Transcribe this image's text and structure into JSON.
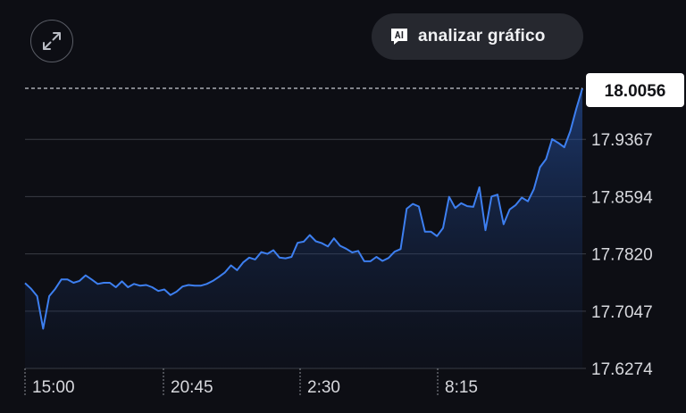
{
  "controls": {
    "expand_icon": "expand-arrows-icon",
    "analyze_label": "analizar gráfico",
    "analyze_icon": "ai-chat-icon"
  },
  "colors": {
    "background": "#0d0e14",
    "line": "#3d7ff0",
    "grid": "#3a3c44",
    "price_box": "#ffffff"
  },
  "chart_data": {
    "type": "area",
    "title": "",
    "xlabel": "",
    "ylabel": "",
    "y_ticks": [
      "17.6274",
      "17.7047",
      "17.7820",
      "17.8594",
      "17.9367"
    ],
    "ylim": [
      17.6274,
      18.0056
    ],
    "x_ticks": [
      "15:00",
      "20:45",
      "2:30",
      "8:15"
    ],
    "last_price_label": "18.0056",
    "grid": "horizontal",
    "series": [
      {
        "values": [
          17.7425,
          17.735,
          17.725,
          17.681,
          17.725,
          17.735,
          17.7475,
          17.7475,
          17.743,
          17.7455,
          17.753,
          17.7475,
          17.7415,
          17.743,
          17.743,
          17.737,
          17.745,
          17.737,
          17.7415,
          17.739,
          17.74,
          17.737,
          17.732,
          17.734,
          17.7265,
          17.731,
          17.738,
          17.74,
          17.739,
          17.739,
          17.7415,
          17.7455,
          17.751,
          17.757,
          17.7665,
          17.76,
          17.7705,
          17.777,
          17.7745,
          17.7845,
          17.782,
          17.787,
          17.777,
          17.776,
          17.778,
          17.797,
          17.7985,
          17.8075,
          17.799,
          17.7965,
          17.792,
          17.803,
          17.793,
          17.789,
          17.784,
          17.786,
          17.772,
          17.772,
          17.778,
          17.7725,
          17.7765,
          17.785,
          17.7885,
          17.843,
          17.8495,
          17.846,
          17.812,
          17.812,
          17.806,
          17.817,
          17.859,
          17.844,
          17.8505,
          17.8465,
          17.8455,
          17.872,
          17.814,
          17.8595,
          17.862,
          17.822,
          17.842,
          17.848,
          17.858,
          17.853,
          17.8695,
          17.899,
          17.91,
          17.937,
          17.932,
          17.926,
          17.9475,
          17.978,
          18.0056
        ]
      }
    ]
  }
}
